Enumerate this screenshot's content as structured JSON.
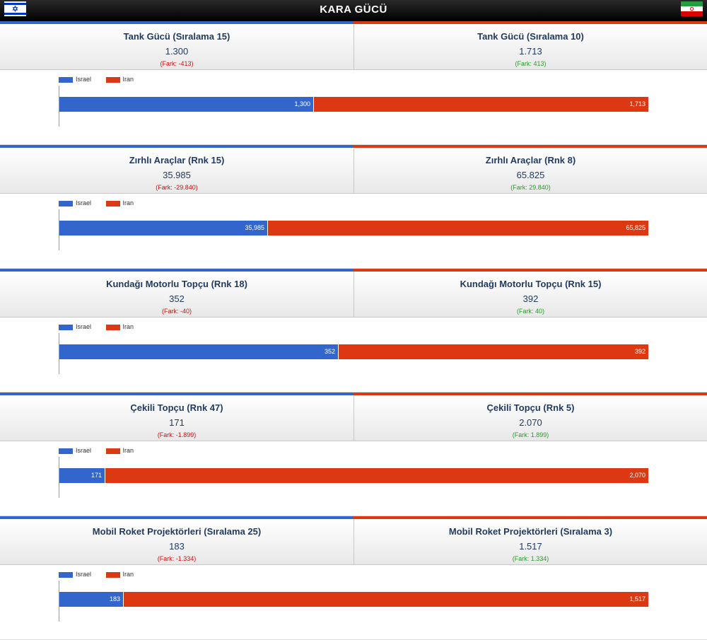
{
  "header": {
    "title": "KARA GÜCÜ"
  },
  "flags": {
    "left_icon": "israel-flag-icon",
    "right_icon": "iran-flag-icon"
  },
  "colors": {
    "israel": "#3366cc",
    "iran": "#dc3912",
    "diff_negative": "#cc1111",
    "diff_positive": "#2a9a2a"
  },
  "sections": [
    {
      "left": {
        "label": "Tank Gücü (Sıralama 15)",
        "value": "1.300",
        "diff": "(Fark: -413)"
      },
      "right": {
        "label": "Tank Gücü (Sıralama 10)",
        "value": "1.713",
        "diff": "(Fark: 413)"
      }
    },
    {
      "left": {
        "label": "Zırhlı Araçlar (Rnk 15)",
        "value": "35.985",
        "diff": "(Fark: -29.840)"
      },
      "right": {
        "label": "Zırhlı Araçlar (Rnk 8)",
        "value": "65.825",
        "diff": "(Fark: 29.840)"
      }
    },
    {
      "left": {
        "label": "Kundağı Motorlu Topçu (Rnk 18)",
        "value": "352",
        "diff": "(Fark: -40)"
      },
      "right": {
        "label": "Kundağı Motorlu Topçu (Rnk 15)",
        "value": "392",
        "diff": "(Fark: 40)"
      }
    },
    {
      "left": {
        "label": "Çekili Topçu (Rnk 47)",
        "value": "171",
        "diff": "(Fark: -1.899)"
      },
      "right": {
        "label": "Çekili Topçu (Rnk 5)",
        "value": "2.070",
        "diff": "(Fark: 1.899)"
      }
    },
    {
      "left": {
        "label": "Mobil Roket Projektörleri (Sıralama 25)",
        "value": "183",
        "diff": "(Fark: -1.334)"
      },
      "right": {
        "label": "Mobil Roket Projektörleri (Sıralama 3)",
        "value": "1.517",
        "diff": "(Fark: 1.334)"
      }
    }
  ],
  "chart_data": [
    {
      "type": "bar",
      "stacked": true,
      "orientation": "horizontal",
      "legend": "top-left",
      "series": [
        {
          "name": "Israel",
          "values": [
            1300
          ],
          "label": "1,300"
        },
        {
          "name": "Iran",
          "values": [
            1713
          ],
          "label": "1,713"
        }
      ]
    },
    {
      "type": "bar",
      "stacked": true,
      "orientation": "horizontal",
      "legend": "top-left",
      "series": [
        {
          "name": "Israel",
          "values": [
            35985
          ],
          "label": "35,985"
        },
        {
          "name": "Iran",
          "values": [
            65825
          ],
          "label": "65,825"
        }
      ]
    },
    {
      "type": "bar",
      "stacked": true,
      "orientation": "horizontal",
      "legend": "top-left",
      "series": [
        {
          "name": "Israel",
          "values": [
            352
          ],
          "label": "352"
        },
        {
          "name": "Iran",
          "values": [
            392
          ],
          "label": "392"
        }
      ]
    },
    {
      "type": "bar",
      "stacked": true,
      "orientation": "horizontal",
      "legend": "top-left",
      "series": [
        {
          "name": "Israel",
          "values": [
            171
          ],
          "label": "171"
        },
        {
          "name": "Iran",
          "values": [
            2070
          ],
          "label": "2,070"
        }
      ]
    },
    {
      "type": "bar",
      "stacked": true,
      "orientation": "horizontal",
      "legend": "top-left",
      "series": [
        {
          "name": "Israel",
          "values": [
            183
          ],
          "label": "183"
        },
        {
          "name": "Iran",
          "values": [
            1517
          ],
          "label": "1,517"
        }
      ]
    }
  ]
}
